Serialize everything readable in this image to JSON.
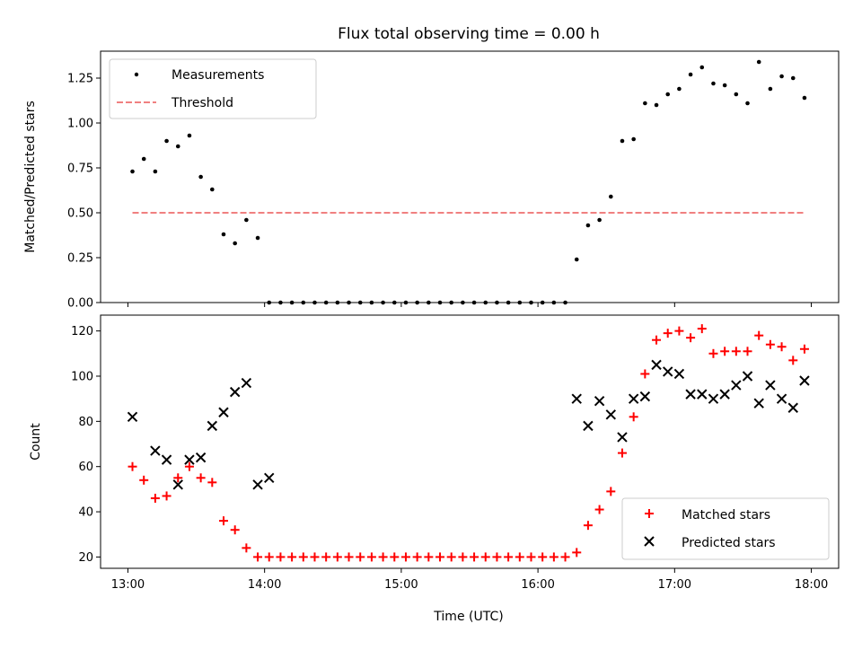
{
  "figure": {
    "title": "Flux total observing time = 0.00 h",
    "xlabel": "Time (UTC)"
  },
  "chart_data": [
    {
      "type": "scatter",
      "ylabel": "Matched/Predicted stars",
      "xlim": [
        "12:48",
        "18:12"
      ],
      "ylim": [
        0,
        1.4
      ],
      "xticks": [
        "13:00",
        "14:00",
        "15:00",
        "16:00",
        "17:00",
        "18:00"
      ],
      "yticks": [
        "0.00",
        "0.25",
        "0.50",
        "0.75",
        "1.00",
        "1.25"
      ],
      "grid": false,
      "legend_position": "top-left",
      "series": [
        {
          "name": "Measurements",
          "marker": "dot",
          "color": "#000000",
          "x": [
            "13:02",
            "13:07",
            "13:12",
            "13:17",
            "13:22",
            "13:27",
            "13:32",
            "13:37",
            "13:42",
            "13:47",
            "13:52",
            "13:57",
            "14:02",
            "14:07",
            "14:12",
            "14:17",
            "14:22",
            "14:27",
            "14:32",
            "14:37",
            "14:42",
            "14:47",
            "14:52",
            "14:57",
            "15:02",
            "15:07",
            "15:12",
            "15:17",
            "15:22",
            "15:27",
            "15:32",
            "15:37",
            "15:42",
            "15:47",
            "15:52",
            "15:57",
            "16:02",
            "16:07",
            "16:12",
            "16:17",
            "16:22",
            "16:27",
            "16:32",
            "16:37",
            "16:42",
            "16:47",
            "16:52",
            "16:57",
            "17:02",
            "17:07",
            "17:12",
            "17:17",
            "17:22",
            "17:27",
            "17:32",
            "17:37",
            "17:42",
            "17:47",
            "17:52",
            "17:57"
          ],
          "y": [
            0.73,
            0.8,
            0.73,
            0.9,
            0.87,
            0.93,
            0.7,
            0.63,
            0.38,
            0.33,
            0.46,
            0.36,
            0,
            0,
            0,
            0,
            0,
            0,
            0,
            0,
            0,
            0,
            0,
            0,
            0,
            0,
            0,
            0,
            0,
            0,
            0,
            0,
            0,
            0,
            0,
            0,
            0,
            0,
            0,
            0.24,
            0.43,
            0.46,
            0.59,
            0.9,
            0.91,
            1.11,
            1.1,
            1.16,
            1.19,
            1.27,
            1.31,
            1.22,
            1.21,
            1.16,
            1.11,
            1.34,
            1.19,
            1.26,
            1.25,
            1.14
          ]
        },
        {
          "name": "Threshold",
          "marker": "dashed-line",
          "color": "#f08080",
          "x": [
            "13:02",
            "17:57"
          ],
          "y": [
            0.5,
            0.5
          ]
        }
      ]
    },
    {
      "type": "scatter",
      "ylabel": "Count",
      "xlim": [
        "12:48",
        "18:12"
      ],
      "ylim": [
        15,
        127
      ],
      "xticks": [
        "13:00",
        "14:00",
        "15:00",
        "16:00",
        "17:00",
        "18:00"
      ],
      "yticks": [
        "20",
        "40",
        "60",
        "80",
        "100",
        "120"
      ],
      "grid": false,
      "legend_position": "bottom-right",
      "series": [
        {
          "name": "Matched stars",
          "marker": "plus",
          "color": "#ff0000",
          "x": [
            "13:02",
            "13:07",
            "13:12",
            "13:17",
            "13:22",
            "13:27",
            "13:32",
            "13:37",
            "13:42",
            "13:47",
            "13:52",
            "13:57",
            "14:02",
            "14:07",
            "14:12",
            "14:17",
            "14:22",
            "14:27",
            "14:32",
            "14:37",
            "14:42",
            "14:47",
            "14:52",
            "14:57",
            "15:02",
            "15:07",
            "15:12",
            "15:17",
            "15:22",
            "15:27",
            "15:32",
            "15:37",
            "15:42",
            "15:47",
            "15:52",
            "15:57",
            "16:02",
            "16:07",
            "16:12",
            "16:17",
            "16:22",
            "16:27",
            "16:32",
            "16:37",
            "16:42",
            "16:47",
            "16:52",
            "16:57",
            "17:02",
            "17:07",
            "17:12",
            "17:17",
            "17:22",
            "17:27",
            "17:32",
            "17:37",
            "17:42",
            "17:47",
            "17:52",
            "17:57"
          ],
          "y": [
            60,
            54,
            46,
            47,
            55,
            60,
            55,
            53,
            36,
            32,
            24,
            20,
            20,
            20,
            20,
            20,
            20,
            20,
            20,
            20,
            20,
            20,
            20,
            20,
            20,
            20,
            20,
            20,
            20,
            20,
            20,
            20,
            20,
            20,
            20,
            20,
            20,
            20,
            20,
            22,
            34,
            41,
            49,
            66,
            82,
            101,
            116,
            119,
            120,
            117,
            121,
            110,
            111,
            111,
            111,
            118,
            114,
            113,
            107,
            112
          ]
        },
        {
          "name": "Predicted stars",
          "marker": "x",
          "color": "#000000",
          "x": [
            "13:02",
            "13:12",
            "13:17",
            "13:22",
            "13:27",
            "13:32",
            "13:37",
            "13:42",
            "13:47",
            "13:52",
            "13:57",
            "14:02",
            "16:17",
            "16:22",
            "16:27",
            "16:32",
            "16:37",
            "16:42",
            "16:47",
            "16:52",
            "16:57",
            "17:02",
            "17:07",
            "17:12",
            "17:17",
            "17:22",
            "17:27",
            "17:32",
            "17:37",
            "17:42",
            "17:47",
            "17:52",
            "17:57"
          ],
          "y": [
            82,
            67,
            63,
            52,
            63,
            64,
            78,
            84,
            93,
            97,
            52,
            55,
            90,
            78,
            89,
            83,
            73,
            90,
            91,
            105,
            102,
            101,
            92,
            92,
            90,
            92,
            96,
            100,
            88,
            96,
            90,
            86,
            98
          ]
        }
      ]
    }
  ]
}
